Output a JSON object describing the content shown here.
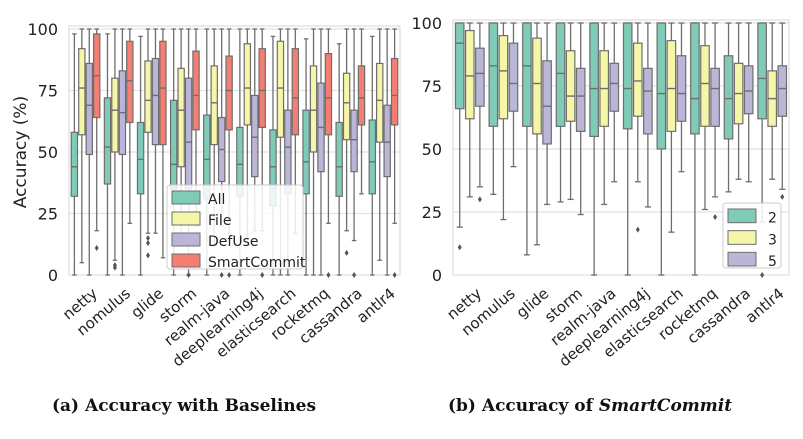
{
  "colors": {
    "All": "#7fcbb8",
    "File": "#f6f6a8",
    "DefUse": "#bbb5d8",
    "SmartCommit": "#f47e72",
    "2": "#7fcbb8",
    "3": "#f6f6a8",
    "5": "#bbb5d8",
    "box_edge": "#6e6e6e",
    "grid": "#e2e2e2"
  },
  "captions": {
    "a": "(a) Accuracy with Baselines",
    "b_prefix": "(b) Accuracy of ",
    "b_italic": "SmartCommit"
  },
  "chart_data": [
    {
      "type": "box",
      "ylabel": "Accuracy (%)",
      "ylim": [
        0,
        100
      ],
      "yticks": [
        0,
        25,
        50,
        75,
        100
      ],
      "grid": true,
      "legend_placement": "lower-center",
      "series_names": [
        "All",
        "File",
        "DefUse",
        "SmartCommit"
      ],
      "categories": [
        "netty",
        "nomulus",
        "glide",
        "storm",
        "realm-java",
        "deeplearning4j",
        "elasticsearch",
        "rocketmq",
        "cassandra",
        "antlr4"
      ],
      "boxes": [
        [
          [
            0,
            32,
            44,
            58,
            98,
            []
          ],
          [
            5,
            57,
            76,
            92,
            100,
            []
          ],
          [
            0,
            49,
            69,
            86,
            100,
            []
          ],
          [
            18,
            64,
            81,
            98,
            100,
            [
              11
            ]
          ]
        ],
        [
          [
            0,
            37,
            52,
            72,
            98,
            []
          ],
          [
            6,
            50,
            67,
            80,
            100,
            [
              3,
              4
            ]
          ],
          [
            0,
            49,
            66,
            83,
            100,
            []
          ],
          [
            21,
            62,
            79,
            95,
            100,
            []
          ]
        ],
        [
          [
            0,
            33,
            47,
            62,
            97,
            []
          ],
          [
            17,
            58,
            71,
            87,
            100,
            [
              8,
              13,
              15
            ]
          ],
          [
            17,
            53,
            73,
            88,
            100,
            []
          ],
          [
            7,
            53,
            76,
            95,
            100,
            []
          ]
        ],
        [
          [
            0,
            35,
            45,
            71,
            100,
            []
          ],
          [
            12,
            44,
            67,
            84,
            100,
            []
          ],
          [
            0,
            35,
            54,
            80,
            100,
            [
              0
            ]
          ],
          [
            20,
            59,
            73,
            91,
            100,
            []
          ]
        ],
        [
          [
            0,
            31,
            47,
            65,
            100,
            []
          ],
          [
            12,
            53,
            70,
            85,
            100,
            []
          ],
          [
            20,
            38,
            51,
            64,
            100,
            [
              0
            ]
          ],
          [
            17,
            59,
            75,
            89,
            100,
            [
              0
            ]
          ]
        ],
        [
          [
            0,
            32,
            45,
            60,
            100,
            []
          ],
          [
            12,
            61,
            76,
            94,
            100,
            []
          ],
          [
            18,
            40,
            56,
            73,
            100,
            []
          ],
          [
            18,
            60,
            75,
            92,
            100,
            [
              0
            ]
          ]
        ],
        [
          [
            0,
            28,
            44,
            59,
            97,
            []
          ],
          [
            0,
            56,
            76,
            95,
            100,
            []
          ],
          [
            0,
            33,
            52,
            67,
            100,
            []
          ],
          [
            17,
            57,
            72,
            92,
            100,
            []
          ]
        ],
        [
          [
            0,
            33,
            46,
            67,
            96,
            []
          ],
          [
            0,
            50,
            67,
            85,
            100,
            []
          ],
          [
            0,
            42,
            60,
            78,
            100,
            []
          ],
          [
            21,
            57,
            72,
            90,
            100,
            [
              0
            ]
          ]
        ],
        [
          [
            0,
            32,
            44,
            62,
            94,
            []
          ],
          [
            18,
            55,
            70,
            82,
            100,
            [
              9
            ]
          ],
          [
            14,
            42,
            55,
            67,
            100,
            [
              0
            ]
          ],
          [
            33,
            61,
            72,
            85,
            100,
            []
          ]
        ],
        [
          [
            0,
            33,
            46,
            63,
            97,
            []
          ],
          [
            6,
            54,
            71,
            86,
            100,
            []
          ],
          [
            0,
            40,
            54,
            69,
            100,
            []
          ],
          [
            21,
            61,
            73,
            88,
            100,
            [
              0
            ]
          ]
        ]
      ],
      "box_fields": [
        "whisker_low",
        "q1",
        "median",
        "q3",
        "whisker_high",
        "outliers"
      ]
    },
    {
      "type": "box",
      "ylim": [
        0,
        100
      ],
      "yticks": [
        0,
        25,
        50,
        75,
        100
      ],
      "grid": true,
      "legend_placement": "lower-right",
      "series_names": [
        "2",
        "3",
        "5"
      ],
      "categories": [
        "netty",
        "nomulus",
        "glide",
        "storm",
        "realm-java",
        "deeplearning4j",
        "elasticsearch",
        "rocketmq",
        "cassandra",
        "antlr4"
      ],
      "boxes": [
        [
          [
            19,
            66,
            92,
            100,
            100,
            [
              11
            ]
          ],
          [
            31,
            62,
            79,
            97,
            100,
            []
          ],
          [
            35,
            67,
            80,
            90,
            100,
            [
              30
            ]
          ]
        ],
        [
          [
            32,
            59,
            83,
            100,
            100,
            []
          ],
          [
            22,
            62,
            81,
            95,
            100,
            []
          ],
          [
            43,
            65,
            76,
            92,
            100,
            []
          ]
        ],
        [
          [
            8,
            59,
            83,
            100,
            100,
            []
          ],
          [
            12,
            56,
            76,
            94,
            100,
            []
          ],
          [
            28,
            52,
            67,
            85,
            100,
            []
          ]
        ],
        [
          [
            29,
            59,
            80,
            100,
            100,
            []
          ],
          [
            30,
            61,
            71,
            89,
            100,
            []
          ],
          [
            24,
            57,
            71,
            82,
            100,
            []
          ]
        ],
        [
          [
            0,
            55,
            74,
            100,
            100,
            []
          ],
          [
            28,
            59,
            74,
            89,
            100,
            []
          ],
          [
            37,
            65,
            76,
            84,
            100,
            []
          ]
        ],
        [
          [
            0,
            58,
            74,
            100,
            100,
            []
          ],
          [
            37,
            63,
            77,
            92,
            100,
            [
              18
            ]
          ],
          [
            27,
            56,
            73,
            82,
            100,
            []
          ]
        ],
        [
          [
            0,
            50,
            72,
            100,
            100,
            []
          ],
          [
            17,
            57,
            74,
            93,
            100,
            []
          ],
          [
            41,
            61,
            72,
            87,
            100,
            []
          ]
        ],
        [
          [
            0,
            56,
            70,
            100,
            100,
            []
          ],
          [
            26,
            59,
            76,
            91,
            100,
            []
          ],
          [
            31,
            59,
            74,
            82,
            100,
            [
              23
            ]
          ]
        ],
        [
          [
            33,
            54,
            70,
            87,
            100,
            []
          ],
          [
            38,
            60,
            72,
            84,
            100,
            []
          ],
          [
            37,
            64,
            73,
            83,
            100,
            []
          ]
        ],
        [
          [
            21,
            62,
            78,
            100,
            100,
            [
              0
            ]
          ],
          [
            38,
            59,
            70,
            81,
            100,
            []
          ],
          [
            34,
            63,
            74,
            83,
            100,
            [
              31
            ]
          ]
        ]
      ],
      "box_fields": [
        "whisker_low",
        "q1",
        "median",
        "q3",
        "whisker_high",
        "outliers"
      ]
    }
  ]
}
